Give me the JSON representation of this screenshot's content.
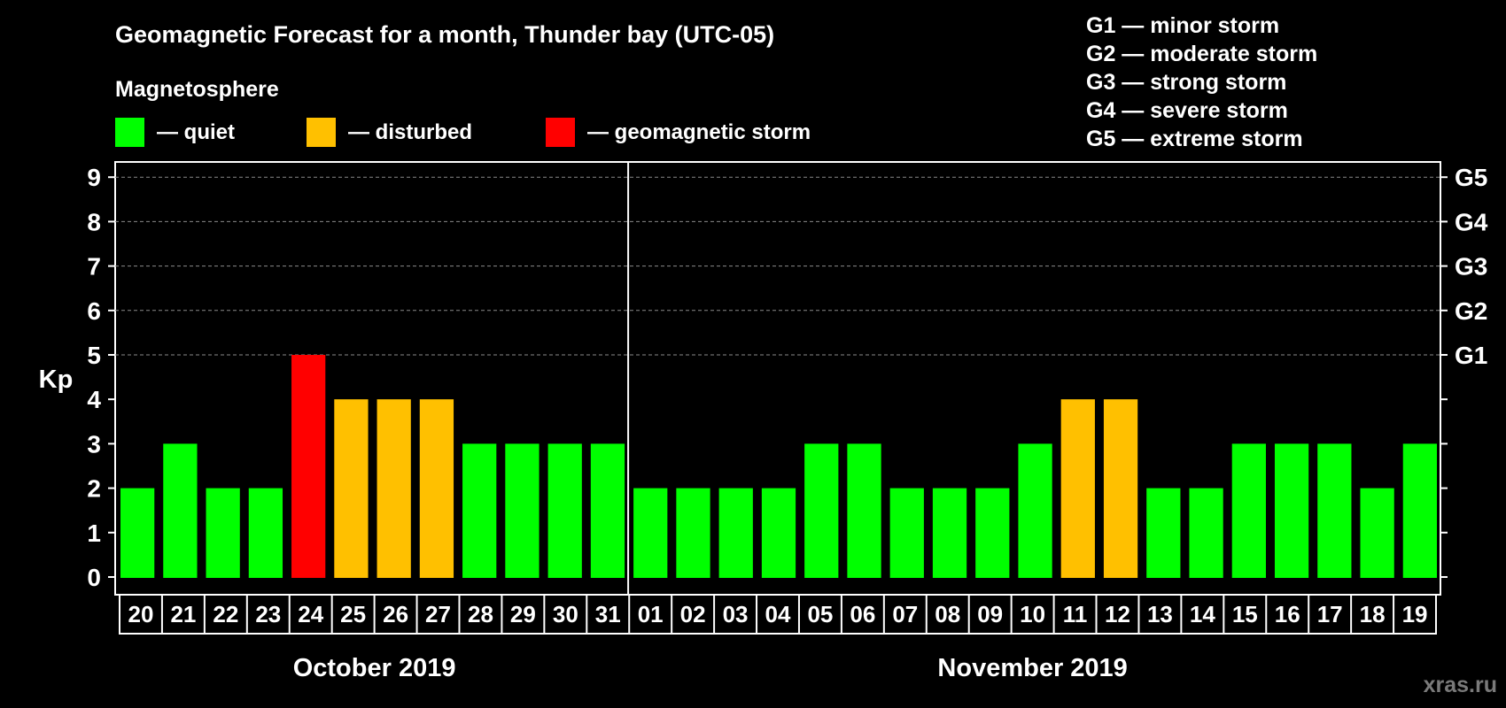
{
  "chart_data": {
    "type": "bar",
    "title": "Geomagnetic Forecast for a month, Thunder bay (UTC-05)",
    "subtitle": "Magnetosphere",
    "ylabel": "Kp",
    "ylim": [
      0,
      9
    ],
    "yticks": [
      "0",
      "1",
      "2",
      "3",
      "4",
      "5",
      "6",
      "7",
      "8",
      "9"
    ],
    "right_ticks": [
      {
        "kp": 5,
        "label": "G1"
      },
      {
        "kp": 6,
        "label": "G2"
      },
      {
        "kp": 7,
        "label": "G3"
      },
      {
        "kp": 8,
        "label": "G4"
      },
      {
        "kp": 9,
        "label": "G5"
      }
    ],
    "categories": [
      "20",
      "21",
      "22",
      "23",
      "24",
      "25",
      "26",
      "27",
      "28",
      "29",
      "30",
      "31",
      "01",
      "02",
      "03",
      "04",
      "05",
      "06",
      "07",
      "08",
      "09",
      "10",
      "11",
      "12",
      "13",
      "14",
      "15",
      "16",
      "17",
      "18",
      "19"
    ],
    "values": [
      2,
      3,
      2,
      2,
      5,
      4,
      4,
      4,
      3,
      3,
      3,
      3,
      2,
      2,
      2,
      2,
      3,
      3,
      2,
      2,
      2,
      3,
      4,
      4,
      2,
      2,
      3,
      3,
      3,
      2,
      3
    ],
    "months": [
      {
        "label": "October 2019",
        "start": 0,
        "end": 11
      },
      {
        "label": "November 2019",
        "start": 12,
        "end": 30
      }
    ],
    "legend": [
      {
        "label": "— quiet",
        "color": "#00ff00"
      },
      {
        "label": "— disturbed",
        "color": "#ffc000"
      },
      {
        "label": "— geomagnetic storm",
        "color": "#ff0000"
      }
    ],
    "storm_scale": [
      "G1 — minor storm",
      "G2 — moderate storm",
      "G3 — strong storm",
      "G4 — severe storm",
      "G5 — extreme storm"
    ],
    "colors": {
      "quiet": "#00ff00",
      "disturbed": "#ffc000",
      "storm": "#ff0000"
    },
    "watermark": "xras.ru"
  }
}
